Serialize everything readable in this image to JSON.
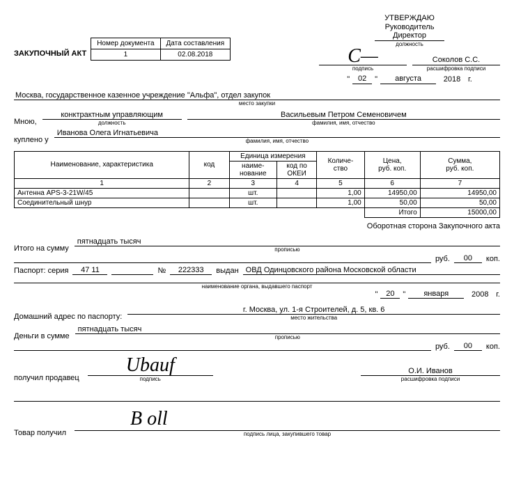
{
  "approval": {
    "utverzhdayu": "УТВЕРЖДАЮ",
    "rukovoditel": "Руководитель",
    "position": "Директор",
    "position_sub": "должность",
    "signature_sub": "подпись",
    "decipher": "Соколов С.С.",
    "decipher_sub": "расшифровка подписи",
    "day": "02",
    "month": "августа",
    "year": "2018",
    "g": "г."
  },
  "doc_header": {
    "title": "ЗАКУПОЧНЫЙ АКТ",
    "col_num": "Номер документа",
    "col_date": "Дата составления",
    "num": "1",
    "date": "02.08.2018"
  },
  "fields": {
    "place": "Москва, государственное казенное учреждение \"Альфа\", отдел закупок",
    "place_sub": "место закупки",
    "mnoyu": "Мною,",
    "position": "конктрактным управляющим",
    "position_sub": "должность",
    "fio": "Васильевым Петром Семеновичем",
    "fio_sub": "фамилия, имя, отчество",
    "kupleno": "куплено у",
    "seller": "Иванова Олега Игнатьевича",
    "seller_sub": "фамилия, имя, отчество"
  },
  "table": {
    "h_name": "Наименование, характеристика",
    "h_code": "код",
    "h_unit": "Единица измерения",
    "h_unit_name": "наиме-\nнование",
    "h_unit_okei": "код по ОКЕИ",
    "h_qty": "Количе-\nство",
    "h_price": "Цена,\nруб. коп.",
    "h_sum": "Сумма,\nруб. коп.",
    "n1": "1",
    "n2": "2",
    "n3": "3",
    "n4": "4",
    "n5": "5",
    "n6": "6",
    "n7": "7",
    "rows": [
      {
        "name": "Антенна APS-3-21W/45",
        "code": "",
        "unit": "шт.",
        "okei": "",
        "qty": "1,00",
        "price": "14950,00",
        "sum": "14950,00"
      },
      {
        "name": "Соединительный шнур",
        "code": "",
        "unit": "шт.",
        "okei": "",
        "qty": "1,00",
        "price": "50,00",
        "sum": "50,00"
      }
    ],
    "itogo_label": "Итого",
    "itogo_sum": "15000,00"
  },
  "footer": {
    "back_note": "Оборотная сторона Закупочного акта",
    "itogo_summa": "Итого на сумму",
    "inwords": "пятнадцать тысяч",
    "inwords_sub": "прописью",
    "rub": "руб.",
    "kop": "коп.",
    "kop_val": "00",
    "passport": "Паспорт: серия",
    "series": "47 11",
    "num_label": "№",
    "num": "222333",
    "vydan": "выдан",
    "issuer": "ОВД Одинцовского района Московской области",
    "issuer_sub": "наименование органа, выдавшего паспорт",
    "p_day": "20",
    "p_month": "января",
    "p_year": "2008",
    "g": "г.",
    "address_label": "Домашний адрес по паспорту:",
    "address": "г. Москва, ул. 1-я Строителей, д. 5, кв. 6",
    "address_sub": "место жительства",
    "money_label": "Деньги в сумме",
    "seller_got": "получил продавец",
    "sig_sub": "подпись",
    "seller_name": "О.И. Иванов",
    "decipher_sub": "расшифровка подписи",
    "received": "Товар получил",
    "received_sub": "подпись лица, закупившего товар"
  }
}
